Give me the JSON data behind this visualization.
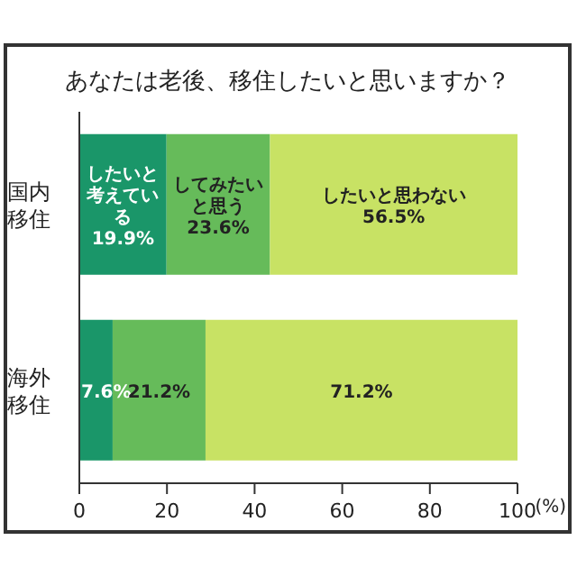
{
  "chart_data": {
    "type": "bar",
    "orientation": "horizontal",
    "stacked": true,
    "title": "あなたは老後、移住したいと思いますか？",
    "xlabel": "(%)",
    "categories": [
      "国内移住",
      "海外移住"
    ],
    "series": [
      {
        "name": "したいと考えている",
        "color": "#1a9669",
        "values": [
          19.9,
          7.6
        ],
        "value_labels": [
          "19.9%",
          "7.6%"
        ]
      },
      {
        "name": "してみたいと思う",
        "color": "#66bb5a",
        "values": [
          23.6,
          21.2
        ],
        "value_labels": [
          "23.6%",
          "21.2%"
        ]
      },
      {
        "name": "したいと思わない",
        "color": "#c8e264",
        "values": [
          56.5,
          71.2
        ],
        "value_labels": [
          "56.5%",
          "71.2%"
        ]
      }
    ],
    "xlim": [
      0,
      100
    ],
    "xticks": [
      0,
      20,
      40,
      60,
      80,
      100
    ],
    "grid": false,
    "legend": false
  }
}
